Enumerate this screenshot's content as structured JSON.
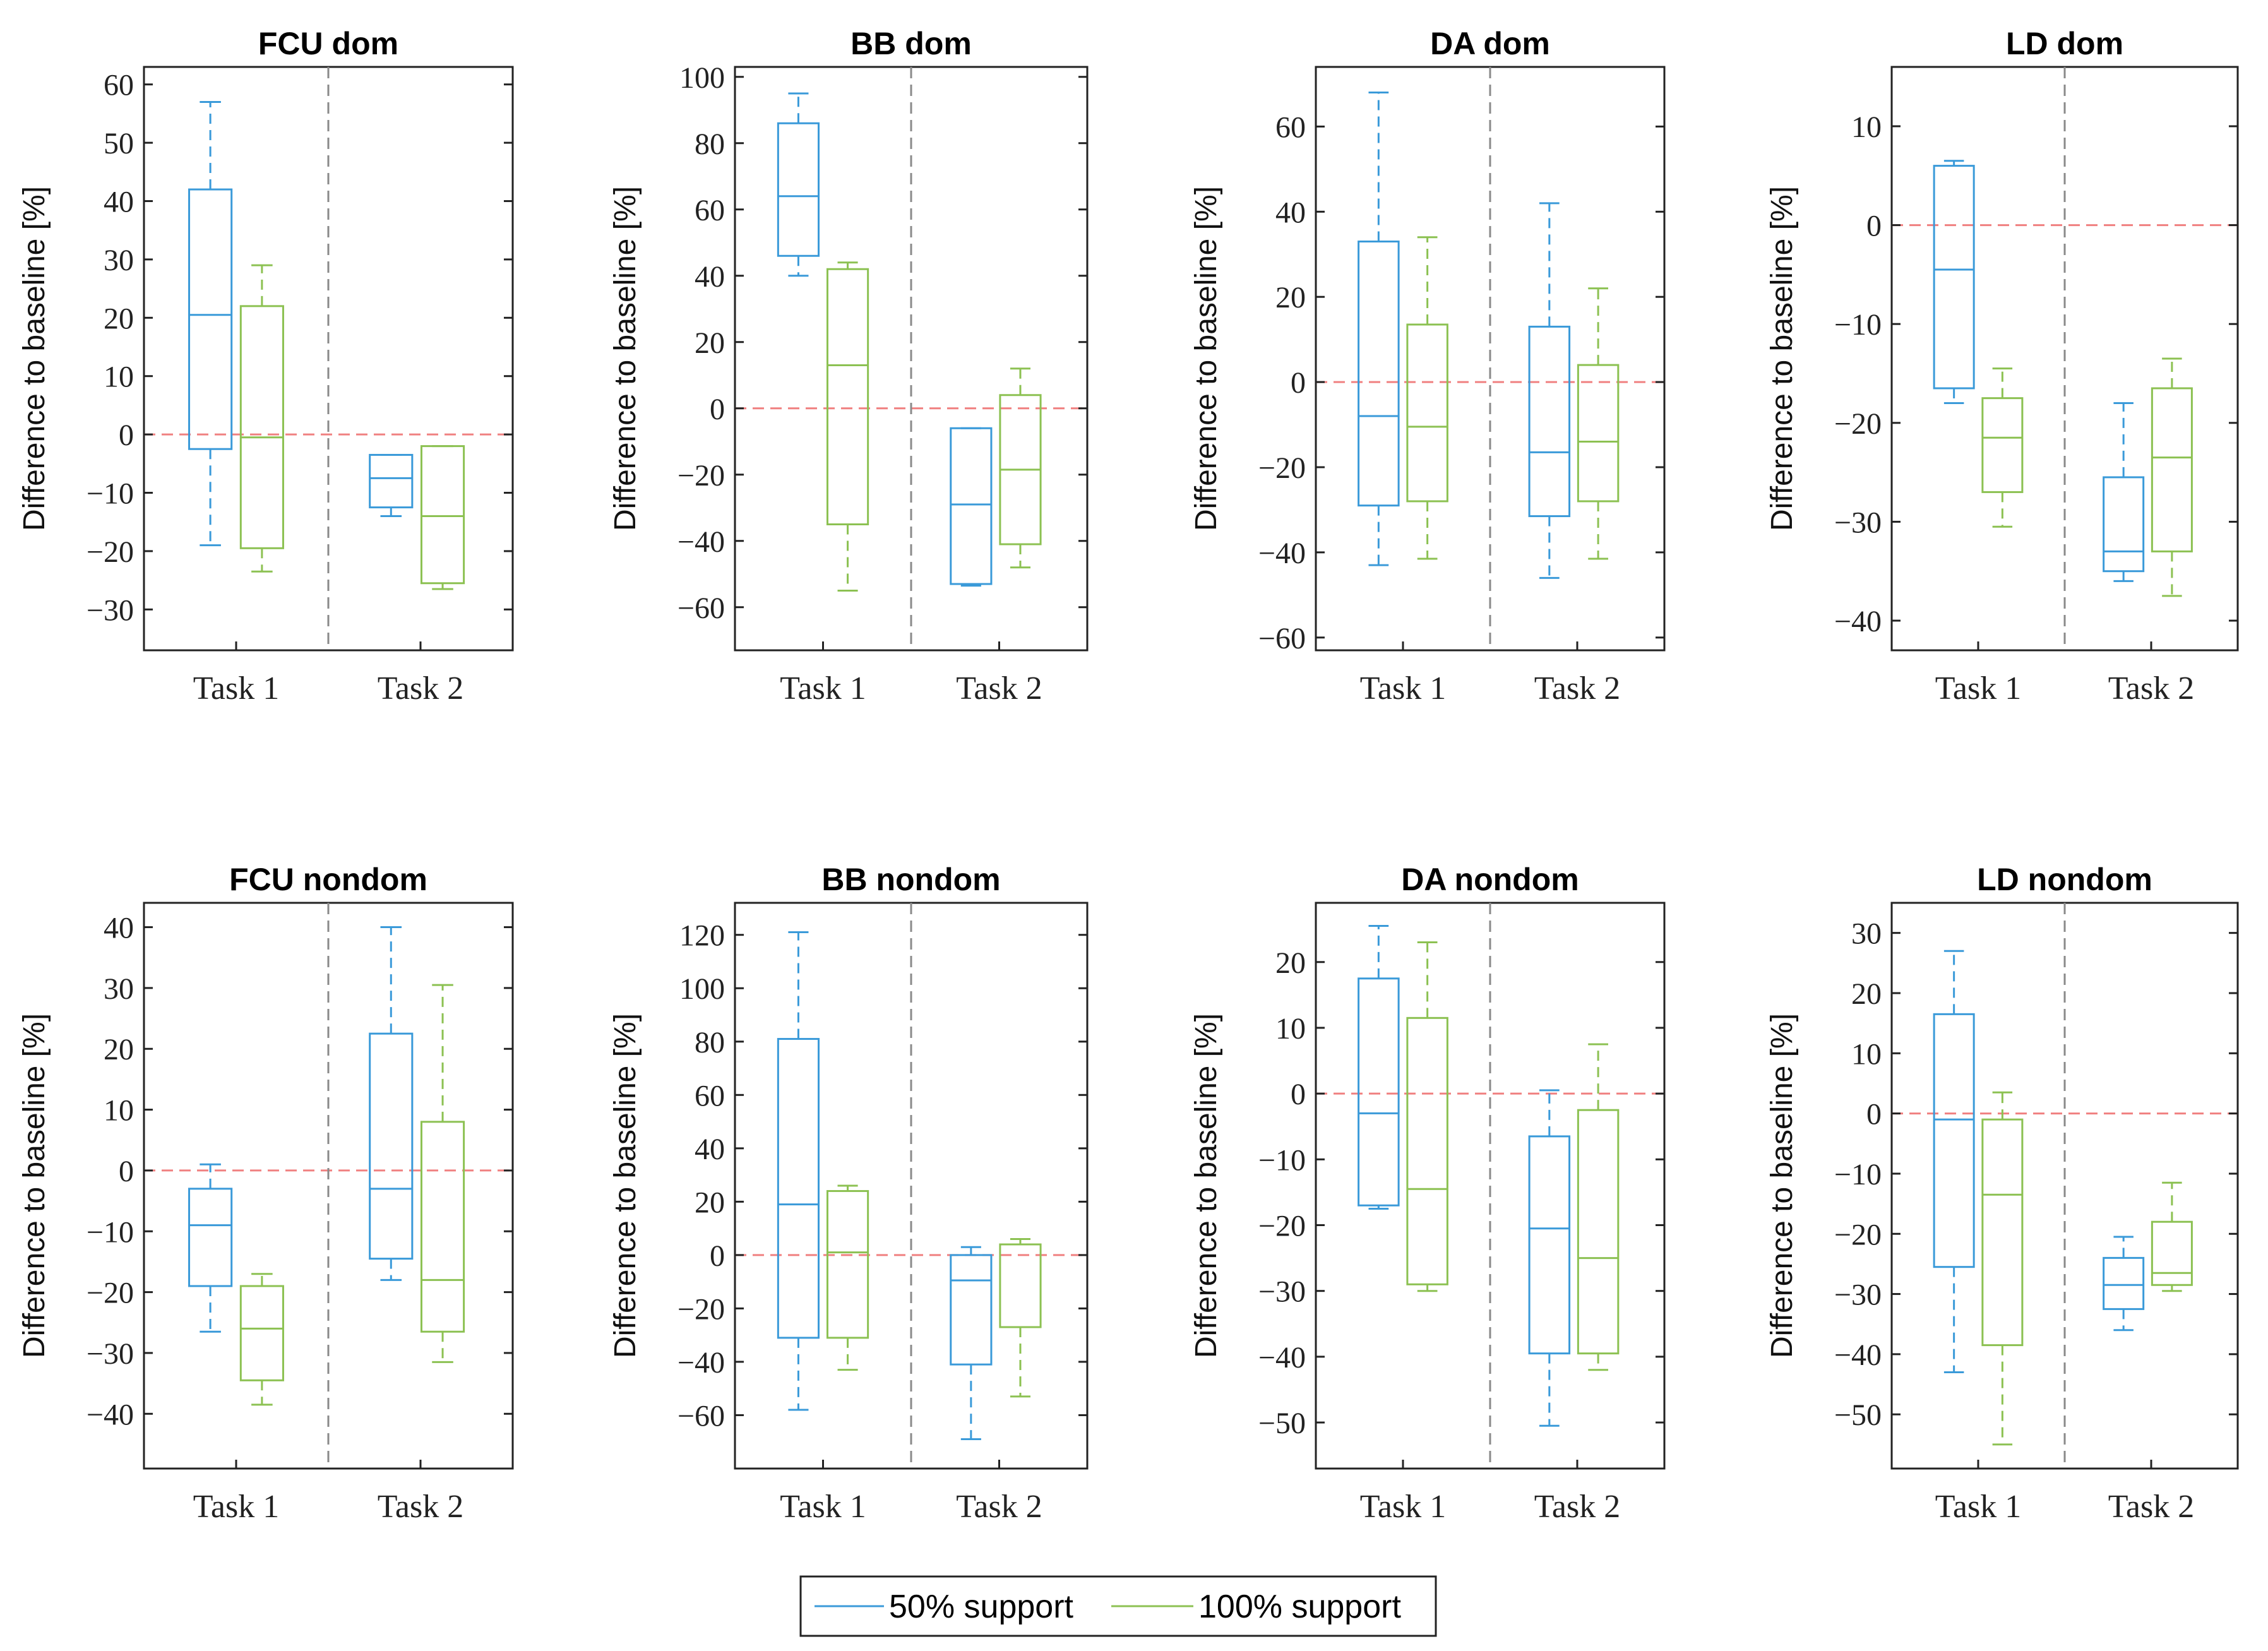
{
  "chart_data": [
    {
      "type": "box",
      "title": "FCU dom",
      "ylabel": "Difference to baseline [%]",
      "categories": [
        "Task 1",
        "Task 2"
      ],
      "ylim": [
        -37,
        63
      ],
      "yticks": [
        -30,
        -20,
        -10,
        0,
        10,
        20,
        30,
        40,
        50,
        60
      ],
      "series": [
        {
          "name": "50% support",
          "boxes": [
            {
              "min": -19,
              "q1": -2.5,
              "median": 20.5,
              "q3": 42,
              "max": 57
            },
            {
              "min": -14,
              "q1": -12.5,
              "median": -7.5,
              "q3": -3.5,
              "max": -3.5
            }
          ]
        },
        {
          "name": "100% support",
          "boxes": [
            {
              "min": -23.5,
              "q1": -19.5,
              "median": -0.5,
              "q3": 22,
              "max": 29
            },
            {
              "min": -26.5,
              "q1": -25.5,
              "median": -14,
              "q3": -2,
              "max": -2
            }
          ]
        }
      ]
    },
    {
      "type": "box",
      "title": "BB dom",
      "ylabel": "Difference to baseline [%]",
      "categories": [
        "Task 1",
        "Task 2"
      ],
      "ylim": [
        -73,
        103
      ],
      "yticks": [
        -60,
        -40,
        -20,
        0,
        20,
        40,
        60,
        80,
        100
      ],
      "series": [
        {
          "name": "50% support",
          "boxes": [
            {
              "min": 40,
              "q1": 46,
              "median": 64,
              "q3": 86,
              "max": 95
            },
            {
              "min": -53.5,
              "q1": -53,
              "median": -29,
              "q3": -6,
              "max": -6
            }
          ]
        },
        {
          "name": "100% support",
          "boxes": [
            {
              "min": -55,
              "q1": -35,
              "median": 13,
              "q3": 42,
              "max": 44
            },
            {
              "min": -48,
              "q1": -41,
              "median": -18.5,
              "q3": 4,
              "max": 12
            }
          ]
        }
      ]
    },
    {
      "type": "box",
      "title": "DA dom",
      "ylabel": "Difference to baseline [%]",
      "categories": [
        "Task 1",
        "Task 2"
      ],
      "ylim": [
        -63,
        74
      ],
      "yticks": [
        -60,
        -40,
        -20,
        0,
        20,
        40,
        60
      ],
      "series": [
        {
          "name": "50% support",
          "boxes": [
            {
              "min": -43,
              "q1": -29,
              "median": -8,
              "q3": 33,
              "max": 68
            },
            {
              "min": -46,
              "q1": -31.5,
              "median": -16.5,
              "q3": 13,
              "max": 42
            }
          ]
        },
        {
          "name": "100% support",
          "boxes": [
            {
              "min": -41.5,
              "q1": -28,
              "median": -10.5,
              "q3": 13.5,
              "max": 34
            },
            {
              "min": -41.5,
              "q1": -28,
              "median": -14,
              "q3": 4,
              "max": 22
            }
          ]
        }
      ]
    },
    {
      "type": "box",
      "title": "LD dom",
      "ylabel": "Difference to baseline [%]",
      "categories": [
        "Task 1",
        "Task 2"
      ],
      "ylim": [
        -43,
        16
      ],
      "yticks": [
        -40,
        -30,
        -20,
        -10,
        0,
        10
      ],
      "series": [
        {
          "name": "50% support",
          "boxes": [
            {
              "min": -18,
              "q1": -16.5,
              "median": -4.5,
              "q3": 6,
              "max": 6.5
            },
            {
              "min": -36,
              "q1": -35,
              "median": -33,
              "q3": -25.5,
              "max": -18
            }
          ]
        },
        {
          "name": "100% support",
          "boxes": [
            {
              "min": -30.5,
              "q1": -27,
              "median": -21.5,
              "q3": -17.5,
              "max": -14.5
            },
            {
              "min": -37.5,
              "q1": -33,
              "median": -23.5,
              "q3": -16.5,
              "max": -13.5
            }
          ]
        }
      ]
    },
    {
      "type": "box",
      "title": "FCU nondom",
      "ylabel": "Difference to baseline [%]",
      "categories": [
        "Task 1",
        "Task 2"
      ],
      "ylim": [
        -49,
        44
      ],
      "yticks": [
        -40,
        -30,
        -20,
        -10,
        0,
        10,
        20,
        30,
        40
      ],
      "series": [
        {
          "name": "50% support",
          "boxes": [
            {
              "min": -26.5,
              "q1": -19,
              "median": -9,
              "q3": -3,
              "max": 1
            },
            {
              "min": -18,
              "q1": -14.5,
              "median": -3,
              "q3": 22.5,
              "max": 40
            }
          ]
        },
        {
          "name": "100% support",
          "boxes": [
            {
              "min": -38.5,
              "q1": -34.5,
              "median": -26,
              "q3": -19,
              "max": -17
            },
            {
              "min": -31.5,
              "q1": -26.5,
              "median": -18,
              "q3": 8,
              "max": 30.5
            }
          ]
        }
      ]
    },
    {
      "type": "box",
      "title": "BB nondom",
      "ylabel": "Difference to baseline [%]",
      "categories": [
        "Task 1",
        "Task 2"
      ],
      "ylim": [
        -80,
        132
      ],
      "yticks": [
        -60,
        -40,
        -20,
        0,
        20,
        40,
        60,
        80,
        100,
        120
      ],
      "series": [
        {
          "name": "50% support",
          "boxes": [
            {
              "min": -58,
              "q1": -31,
              "median": 19,
              "q3": 81,
              "max": 121
            },
            {
              "min": -69,
              "q1": -41,
              "median": -9.5,
              "q3": 0,
              "max": 3
            }
          ]
        },
        {
          "name": "100% support",
          "boxes": [
            {
              "min": -43,
              "q1": -31,
              "median": 1,
              "q3": 24,
              "max": 26
            },
            {
              "min": -53,
              "q1": -27,
              "median": 4,
              "q3": 4,
              "max": 6
            }
          ]
        }
      ]
    },
    {
      "type": "box",
      "title": "DA nondom",
      "ylabel": "Difference to baseline [%]",
      "categories": [
        "Task 1",
        "Task 2"
      ],
      "ylim": [
        -57,
        29
      ],
      "yticks": [
        -50,
        -40,
        -30,
        -20,
        -10,
        0,
        10,
        20
      ],
      "series": [
        {
          "name": "50% support",
          "boxes": [
            {
              "min": -17.5,
              "q1": -17,
              "median": -3,
              "q3": 17.5,
              "max": 25.5
            },
            {
              "min": -50.5,
              "q1": -39.5,
              "median": -20.5,
              "q3": -6.5,
              "max": 0.5
            }
          ]
        },
        {
          "name": "100% support",
          "boxes": [
            {
              "min": -30,
              "q1": -29,
              "median": -14.5,
              "q3": 11.5,
              "max": 23
            },
            {
              "min": -42,
              "q1": -39.5,
              "median": -25,
              "q3": -2.5,
              "max": 7.5
            }
          ]
        }
      ]
    },
    {
      "type": "box",
      "title": "LD nondom",
      "ylabel": "Difference to baseline [%]",
      "categories": [
        "Task 1",
        "Task 2"
      ],
      "ylim": [
        -59,
        35
      ],
      "yticks": [
        -50,
        -40,
        -30,
        -20,
        -10,
        0,
        10,
        20,
        30
      ],
      "series": [
        {
          "name": "50% support",
          "boxes": [
            {
              "min": -43,
              "q1": -25.5,
              "median": -1,
              "q3": 16.5,
              "max": 27
            },
            {
              "min": -36,
              "q1": -32.5,
              "median": -28.5,
              "q3": -24,
              "max": -20.5
            }
          ]
        },
        {
          "name": "100% support",
          "boxes": [
            {
              "min": -55,
              "q1": -38.5,
              "median": -13.5,
              "q3": -1,
              "max": 3.5
            },
            {
              "min": -29.5,
              "q1": -28.5,
              "median": -26.5,
              "q3": -18,
              "max": -11.5
            }
          ]
        }
      ]
    }
  ],
  "legend": {
    "entries": [
      {
        "label": "50% support",
        "color": "#3a9ad9"
      },
      {
        "label": "100% support",
        "color": "#8cc152"
      }
    ]
  },
  "colors": {
    "series_50": "#3a9ad9",
    "series_100": "#8cc152",
    "zero_line": "#f08080",
    "separator": "#8a8a8a",
    "axis": "#222222"
  }
}
